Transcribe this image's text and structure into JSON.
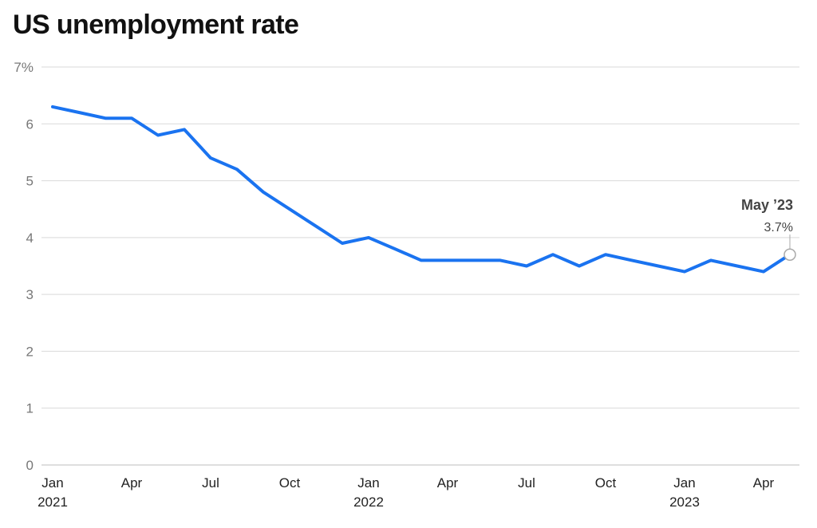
{
  "chart_data": {
    "type": "line",
    "title": "US unemployment rate",
    "xlabel": "",
    "ylabel": "",
    "ylim": [
      0,
      7
    ],
    "y_ticks": [
      {
        "value": 0,
        "label": "0"
      },
      {
        "value": 1,
        "label": "1"
      },
      {
        "value": 2,
        "label": "2"
      },
      {
        "value": 3,
        "label": "3"
      },
      {
        "value": 4,
        "label": "4"
      },
      {
        "value": 5,
        "label": "5"
      },
      {
        "value": 6,
        "label": "6"
      },
      {
        "value": 7,
        "label": "7%"
      }
    ],
    "x_ticks": [
      {
        "date": "2021-01",
        "label": "Jan",
        "year": "2021"
      },
      {
        "date": "2021-04",
        "label": "Apr",
        "year": ""
      },
      {
        "date": "2021-07",
        "label": "Jul",
        "year": ""
      },
      {
        "date": "2021-10",
        "label": "Oct",
        "year": ""
      },
      {
        "date": "2022-01",
        "label": "Jan",
        "year": "2022"
      },
      {
        "date": "2022-04",
        "label": "Apr",
        "year": ""
      },
      {
        "date": "2022-07",
        "label": "Jul",
        "year": ""
      },
      {
        "date": "2022-10",
        "label": "Oct",
        "year": ""
      },
      {
        "date": "2023-01",
        "label": "Jan",
        "year": "2023"
      },
      {
        "date": "2023-04",
        "label": "Apr",
        "year": ""
      }
    ],
    "grid": true,
    "series": [
      {
        "color": "#1a73f0",
        "points": [
          {
            "x": "2021-01",
            "y": 6.3
          },
          {
            "x": "2021-02",
            "y": 6.2
          },
          {
            "x": "2021-03",
            "y": 6.1
          },
          {
            "x": "2021-04",
            "y": 6.1
          },
          {
            "x": "2021-05",
            "y": 5.8
          },
          {
            "x": "2021-06",
            "y": 5.9
          },
          {
            "x": "2021-07",
            "y": 5.4
          },
          {
            "x": "2021-08",
            "y": 5.2
          },
          {
            "x": "2021-09",
            "y": 4.8
          },
          {
            "x": "2021-10",
            "y": 4.5
          },
          {
            "x": "2021-11",
            "y": 4.2
          },
          {
            "x": "2021-12",
            "y": 3.9
          },
          {
            "x": "2022-01",
            "y": 4.0
          },
          {
            "x": "2022-02",
            "y": 3.8
          },
          {
            "x": "2022-03",
            "y": 3.6
          },
          {
            "x": "2022-04",
            "y": 3.6
          },
          {
            "x": "2022-05",
            "y": 3.6
          },
          {
            "x": "2022-06",
            "y": 3.6
          },
          {
            "x": "2022-07",
            "y": 3.5
          },
          {
            "x": "2022-08",
            "y": 3.7
          },
          {
            "x": "2022-09",
            "y": 3.5
          },
          {
            "x": "2022-10",
            "y": 3.7
          },
          {
            "x": "2022-11",
            "y": 3.6
          },
          {
            "x": "2022-12",
            "y": 3.5
          },
          {
            "x": "2023-01",
            "y": 3.4
          },
          {
            "x": "2023-02",
            "y": 3.6
          },
          {
            "x": "2023-03",
            "y": 3.5
          },
          {
            "x": "2023-04",
            "y": 3.4
          },
          {
            "x": "2023-05",
            "y": 3.7
          }
        ]
      }
    ],
    "annotation": {
      "x": "2023-05",
      "y": 3.7,
      "label": "May ’23",
      "value_label": "3.7%"
    },
    "colors": {
      "line": "#1a73f0",
      "grid": "#d9d9d9",
      "marker": "#aaaaaa"
    }
  }
}
